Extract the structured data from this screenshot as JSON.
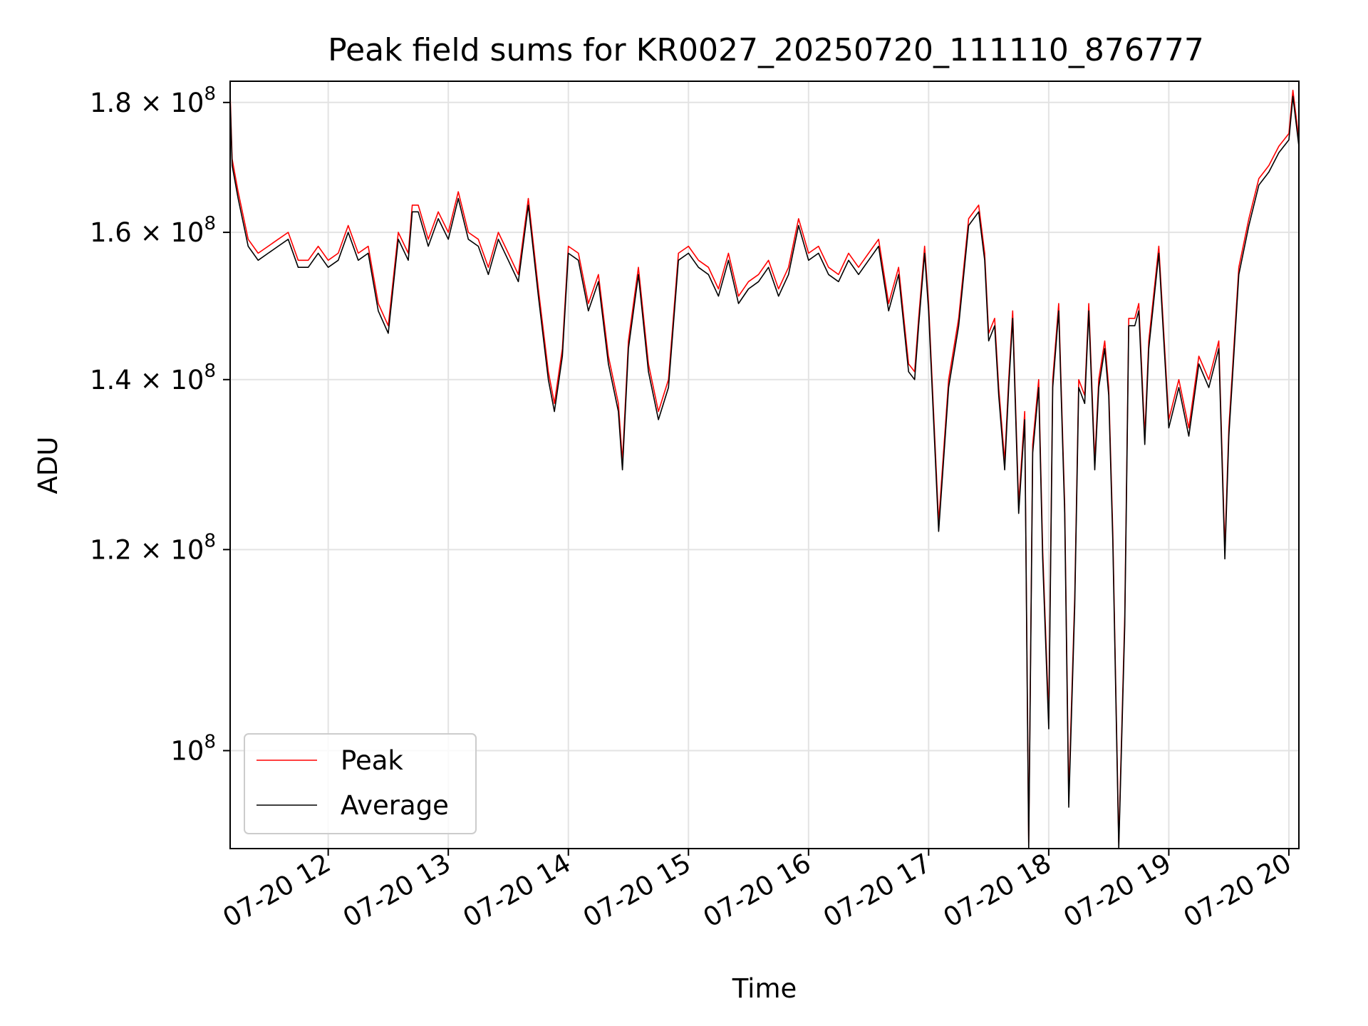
{
  "chart_data": {
    "type": "line",
    "title": "Peak field sums for KR0027_20250720_111110_876777",
    "xlabel": "Time",
    "ylabel": "ADU",
    "x_scale": "time",
    "y_scale": "log",
    "xlim": [
      "2025-07-20 11:11",
      "2025-07-20 20:05"
    ],
    "ylim": [
      91500000,
      183500000
    ],
    "x_ticks": [
      "07-20 12",
      "07-20 13",
      "07-20 14",
      "07-20 15",
      "07-20 16",
      "07-20 17",
      "07-20 18",
      "07-20 19",
      "07-20 20"
    ],
    "y_ticks": [
      {
        "value": 100000000,
        "base": "10",
        "exp": "8",
        "coef": ""
      },
      {
        "value": 120000000,
        "base": "1.2 × 10",
        "exp": "8",
        "coef": "1.2"
      },
      {
        "value": 140000000,
        "base": "1.4 × 10",
        "exp": "8",
        "coef": "1.4"
      },
      {
        "value": 160000000,
        "base": "1.6 × 10",
        "exp": "8",
        "coef": "1.6"
      },
      {
        "value": 180000000,
        "base": "1.8 × 10",
        "exp": "8",
        "coef": "1.8"
      }
    ],
    "grid": true,
    "legend_position": "lower-left",
    "series": [
      {
        "name": "Peak",
        "color": "#ff0000",
        "x": [
          "11:11",
          "11:12",
          "11:15",
          "11:20",
          "11:25",
          "11:30",
          "11:35",
          "11:40",
          "11:45",
          "11:50",
          "11:55",
          "12:00",
          "12:05",
          "12:10",
          "12:15",
          "12:20",
          "12:25",
          "12:30",
          "12:35",
          "12:40",
          "12:42",
          "12:45",
          "12:50",
          "12:55",
          "13:00",
          "13:05",
          "13:10",
          "13:15",
          "13:20",
          "13:25",
          "13:30",
          "13:35",
          "13:40",
          "13:45",
          "13:50",
          "13:53",
          "13:57",
          "14:00",
          "14:05",
          "14:10",
          "14:15",
          "14:20",
          "14:25",
          "14:27",
          "14:30",
          "14:35",
          "14:40",
          "14:45",
          "14:50",
          "14:55",
          "15:00",
          "15:05",
          "15:10",
          "15:15",
          "15:20",
          "15:25",
          "15:30",
          "15:35",
          "15:40",
          "15:45",
          "15:50",
          "15:55",
          "16:00",
          "16:05",
          "16:10",
          "16:15",
          "16:20",
          "16:25",
          "16:30",
          "16:35",
          "16:40",
          "16:45",
          "16:50",
          "16:53",
          "16:55",
          "16:58",
          "17:00",
          "17:05",
          "17:10",
          "17:15",
          "17:20",
          "17:25",
          "17:28",
          "17:30",
          "17:33",
          "17:35",
          "17:38",
          "17:40",
          "17:42",
          "17:45",
          "17:48",
          "17:50",
          "17:52",
          "17:55",
          "17:57",
          "18:00",
          "18:02",
          "18:05",
          "18:08",
          "18:10",
          "18:13",
          "18:15",
          "18:18",
          "18:20",
          "18:23",
          "18:25",
          "18:28",
          "18:30",
          "18:32",
          "18:35",
          "18:38",
          "18:40",
          "18:43",
          "18:45",
          "18:48",
          "18:50",
          "18:55",
          "19:00",
          "19:05",
          "19:10",
          "19:15",
          "19:20",
          "19:25",
          "19:28",
          "19:30",
          "19:35",
          "19:40",
          "19:45",
          "19:50",
          "19:55",
          "20:00",
          "20:02",
          "20:05"
        ],
        "values": [
          181.5,
          171,
          166,
          159,
          157,
          158,
          159,
          160,
          156,
          156,
          158,
          156,
          157,
          161,
          157,
          158,
          150,
          147,
          160,
          157,
          164,
          164,
          159,
          163,
          160,
          166,
          160,
          159,
          155,
          160,
          157,
          154,
          165,
          152,
          141,
          137,
          144,
          158,
          157,
          150,
          154,
          143,
          137,
          130,
          145,
          155,
          142,
          136,
          140,
          157,
          158,
          156,
          155,
          152,
          157,
          151,
          153,
          154,
          156,
          152,
          155,
          162,
          157,
          158,
          155,
          154,
          157,
          155,
          157,
          159,
          150,
          155,
          142,
          141,
          148,
          158,
          150,
          123,
          140,
          148,
          162,
          164,
          157,
          146,
          148,
          139,
          130,
          140,
          149,
          125,
          136,
          92,
          132,
          140,
          120,
          103,
          140,
          150,
          125,
          96,
          115,
          140,
          138,
          150,
          130,
          140,
          145,
          139,
          122,
          92,
          113,
          148,
          148,
          150,
          133,
          145,
          158,
          135,
          140,
          134,
          143,
          140,
          145,
          120,
          134,
          155,
          162,
          168,
          170,
          173,
          175,
          182,
          174
        ]
      },
      {
        "name": "Average",
        "color": "#000000",
        "x": [
          "11:11",
          "11:12",
          "11:15",
          "11:20",
          "11:25",
          "11:30",
          "11:35",
          "11:40",
          "11:45",
          "11:50",
          "11:55",
          "12:00",
          "12:05",
          "12:10",
          "12:15",
          "12:20",
          "12:25",
          "12:30",
          "12:35",
          "12:40",
          "12:42",
          "12:45",
          "12:50",
          "12:55",
          "13:00",
          "13:05",
          "13:10",
          "13:15",
          "13:20",
          "13:25",
          "13:30",
          "13:35",
          "13:40",
          "13:45",
          "13:50",
          "13:53",
          "13:57",
          "14:00",
          "14:05",
          "14:10",
          "14:15",
          "14:20",
          "14:25",
          "14:27",
          "14:30",
          "14:35",
          "14:40",
          "14:45",
          "14:50",
          "14:55",
          "15:00",
          "15:05",
          "15:10",
          "15:15",
          "15:20",
          "15:25",
          "15:30",
          "15:35",
          "15:40",
          "15:45",
          "15:50",
          "15:55",
          "16:00",
          "16:05",
          "16:10",
          "16:15",
          "16:20",
          "16:25",
          "16:30",
          "16:35",
          "16:40",
          "16:45",
          "16:50",
          "16:53",
          "16:55",
          "16:58",
          "17:00",
          "17:05",
          "17:10",
          "17:15",
          "17:20",
          "17:25",
          "17:28",
          "17:30",
          "17:33",
          "17:35",
          "17:38",
          "17:40",
          "17:42",
          "17:45",
          "17:48",
          "17:50",
          "17:52",
          "17:55",
          "17:57",
          "18:00",
          "18:02",
          "18:05",
          "18:08",
          "18:10",
          "18:13",
          "18:15",
          "18:18",
          "18:20",
          "18:23",
          "18:25",
          "18:28",
          "18:30",
          "18:32",
          "18:35",
          "18:38",
          "18:40",
          "18:43",
          "18:45",
          "18:48",
          "18:50",
          "18:55",
          "19:00",
          "19:05",
          "19:10",
          "19:15",
          "19:20",
          "19:25",
          "19:28",
          "19:30",
          "19:35",
          "19:40",
          "19:45",
          "19:50",
          "19:55",
          "20:00",
          "20:02",
          "20:05"
        ],
        "values": [
          180.5,
          170,
          165,
          158,
          156,
          157,
          158,
          159,
          155,
          155,
          157,
          155,
          156,
          160,
          156,
          157,
          149,
          146,
          159,
          156,
          163,
          163,
          158,
          162,
          159,
          165,
          159,
          158,
          154,
          159,
          156,
          153,
          164,
          151,
          140,
          136,
          143,
          157,
          156,
          149,
          153,
          142,
          136,
          129,
          144,
          154,
          141,
          135,
          139,
          156,
          157,
          155,
          154,
          151,
          156,
          150,
          152,
          153,
          155,
          151,
          154,
          161,
          156,
          157,
          154,
          153,
          156,
          154,
          156,
          158,
          149,
          154,
          141,
          140,
          147,
          157,
          149,
          122,
          139,
          147,
          161,
          163,
          156,
          145,
          147,
          138,
          129,
          139,
          148,
          124,
          135,
          91.5,
          131,
          139,
          119,
          102,
          139,
          149,
          124,
          95,
          114,
          139,
          137,
          149,
          129,
          139,
          144,
          138,
          121,
          91.5,
          112,
          147,
          147,
          149,
          132,
          144,
          157,
          134,
          139,
          133,
          142,
          139,
          144,
          119,
          133,
          154,
          161,
          167,
          169,
          172,
          174,
          181,
          173
        ]
      }
    ]
  }
}
